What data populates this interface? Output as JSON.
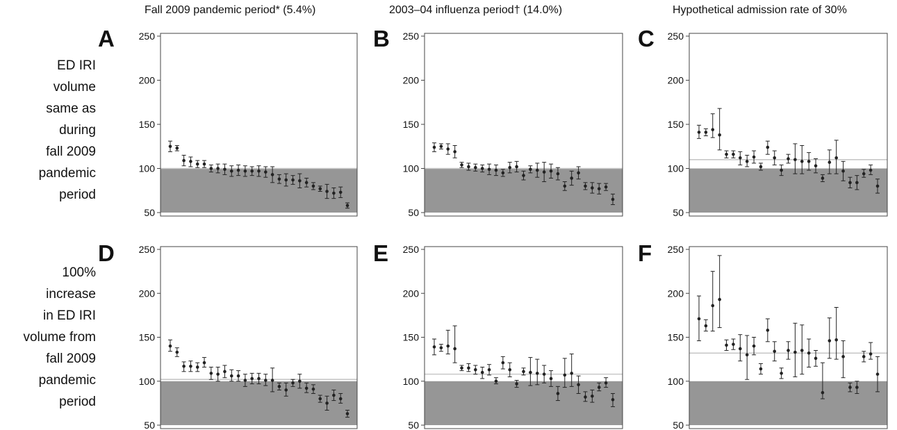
{
  "column_titles": [
    "Fall 2009 pandemic period* (5.4%)",
    "2003–04 influenza period† (14.0%)",
    "Hypothetical admission rate of 30%"
  ],
  "row_labels": [
    [
      "ED IRI",
      "volume",
      "same as",
      "during",
      "fall 2009",
      "pandemic",
      "period"
    ],
    [
      "100%",
      "increase",
      "in ED IRI",
      "volume from",
      "fall 2009",
      "pandemic",
      "period"
    ]
  ],
  "colors": {
    "shade": "#969696",
    "capacity_line": "#c8c8c8",
    "point": "#222222",
    "frame": "#444444"
  },
  "chart_data": [
    {
      "type": "scatter",
      "panel": "A",
      "ylim": [
        50,
        250
      ],
      "yticks": [
        50,
        100,
        150,
        200,
        250
      ],
      "shade_range": [
        50,
        100
      ],
      "line_value": 100,
      "x": [
        1,
        2,
        3,
        4,
        5,
        6,
        7,
        8,
        9,
        10,
        11,
        12,
        13,
        14,
        15,
        16,
        17,
        18,
        19,
        20,
        21,
        22,
        23,
        24,
        25,
        26,
        27
      ],
      "values": [
        125,
        123,
        109,
        108,
        105,
        105,
        100,
        100,
        99,
        97,
        98,
        97,
        97,
        97,
        96,
        93,
        88,
        87,
        87,
        86,
        84,
        80,
        77,
        74,
        72,
        73,
        58
      ],
      "lower": [
        119,
        120,
        103,
        102,
        101,
        101,
        96,
        95,
        93,
        91,
        92,
        91,
        92,
        91,
        90,
        84,
        83,
        80,
        82,
        78,
        79,
        76,
        74,
        66,
        66,
        67,
        55
      ],
      "upper": [
        131,
        126,
        115,
        113,
        109,
        109,
        104,
        105,
        105,
        103,
        104,
        103,
        102,
        103,
        102,
        102,
        93,
        94,
        92,
        94,
        89,
        84,
        80,
        82,
        78,
        79,
        61
      ]
    },
    {
      "type": "scatter",
      "panel": "B",
      "ylim": [
        50,
        250
      ],
      "yticks": [
        50,
        100,
        150,
        200,
        250
      ],
      "shade_range": [
        50,
        100
      ],
      "line_value": 100,
      "x": [
        1,
        2,
        3,
        4,
        5,
        6,
        7,
        8,
        9,
        10,
        11,
        12,
        13,
        14,
        15,
        16,
        17,
        18,
        19,
        20,
        21,
        22,
        23,
        24,
        25,
        26,
        27
      ],
      "values": [
        124,
        125,
        122,
        119,
        104,
        102,
        101,
        100,
        99,
        98,
        95,
        101,
        102,
        92,
        99,
        98,
        96,
        97,
        94,
        80,
        89,
        95,
        80,
        78,
        77,
        79,
        65
      ],
      "lower": [
        119,
        122,
        116,
        112,
        101,
        98,
        97,
        96,
        93,
        92,
        91,
        95,
        96,
        87,
        95,
        90,
        85,
        89,
        87,
        75,
        81,
        88,
        76,
        72,
        71,
        75,
        59
      ],
      "upper": [
        129,
        128,
        128,
        126,
        107,
        106,
        105,
        104,
        105,
        104,
        99,
        107,
        108,
        97,
        103,
        106,
        107,
        105,
        101,
        85,
        97,
        102,
        84,
        84,
        83,
        83,
        71
      ]
    },
    {
      "type": "scatter",
      "panel": "C",
      "ylim": [
        50,
        250
      ],
      "yticks": [
        50,
        100,
        150,
        200,
        250
      ],
      "shade_range": [
        50,
        100
      ],
      "line_value": 110,
      "x": [
        1,
        2,
        3,
        4,
        5,
        6,
        7,
        8,
        9,
        10,
        11,
        12,
        13,
        14,
        15,
        16,
        17,
        18,
        19,
        20,
        21,
        22,
        23,
        24,
        25,
        26,
        27
      ],
      "values": [
        141,
        141,
        144,
        138,
        116,
        116,
        112,
        108,
        113,
        102,
        124,
        112,
        98,
        111,
        110,
        108,
        108,
        103,
        89,
        107,
        112,
        97,
        84,
        84,
        94,
        98,
        80
      ],
      "lower": [
        134,
        137,
        135,
        121,
        112,
        112,
        104,
        102,
        106,
        98,
        116,
        104,
        92,
        106,
        94,
        94,
        98,
        95,
        85,
        94,
        94,
        86,
        78,
        76,
        90,
        93,
        72
      ],
      "upper": [
        149,
        145,
        162,
        168,
        120,
        120,
        119,
        115,
        120,
        106,
        131,
        120,
        104,
        116,
        128,
        126,
        118,
        111,
        93,
        121,
        132,
        108,
        90,
        92,
        99,
        104,
        88
      ]
    },
    {
      "type": "scatter",
      "panel": "D",
      "ylim": [
        50,
        250
      ],
      "yticks": [
        50,
        100,
        150,
        200,
        250
      ],
      "shade_range": [
        50,
        100
      ],
      "line_value": 102,
      "x": [
        1,
        2,
        3,
        4,
        5,
        6,
        7,
        8,
        9,
        10,
        11,
        12,
        13,
        14,
        15,
        16,
        17,
        18,
        19,
        20,
        21,
        22,
        23,
        24,
        25,
        26,
        27
      ],
      "values": [
        140,
        133,
        117,
        117,
        116,
        121,
        109,
        108,
        111,
        106,
        106,
        101,
        103,
        103,
        101,
        101,
        94,
        90,
        98,
        100,
        92,
        91,
        80,
        75,
        84,
        80,
        63
      ],
      "lower": [
        134,
        128,
        111,
        111,
        111,
        116,
        102,
        100,
        104,
        100,
        100,
        94,
        97,
        97,
        95,
        88,
        90,
        83,
        94,
        92,
        87,
        86,
        76,
        67,
        78,
        75,
        59
      ],
      "upper": [
        147,
        138,
        122,
        123,
        121,
        127,
        116,
        116,
        118,
        113,
        112,
        108,
        109,
        109,
        108,
        115,
        98,
        98,
        102,
        108,
        98,
        96,
        84,
        83,
        90,
        86,
        67
      ]
    },
    {
      "type": "scatter",
      "panel": "E",
      "ylim": [
        50,
        250
      ],
      "yticks": [
        50,
        100,
        150,
        200,
        250
      ],
      "shade_range": [
        50,
        100
      ],
      "line_value": 108,
      "x": [
        1,
        2,
        3,
        4,
        5,
        6,
        7,
        8,
        9,
        10,
        11,
        12,
        13,
        14,
        15,
        16,
        17,
        18,
        19,
        20,
        21,
        22,
        23,
        24,
        25,
        26,
        27
      ],
      "values": [
        139,
        138,
        140,
        137,
        115,
        115,
        113,
        110,
        113,
        100,
        121,
        113,
        97,
        111,
        110,
        109,
        108,
        103,
        86,
        107,
        109,
        96,
        82,
        83,
        93,
        98,
        79
      ],
      "lower": [
        130,
        134,
        131,
        121,
        112,
        111,
        108,
        103,
        107,
        97,
        114,
        105,
        93,
        107,
        95,
        96,
        98,
        94,
        78,
        93,
        94,
        86,
        77,
        76,
        89,
        93,
        71
      ],
      "upper": [
        148,
        142,
        158,
        163,
        118,
        120,
        118,
        116,
        119,
        104,
        128,
        121,
        101,
        115,
        127,
        125,
        118,
        112,
        94,
        126,
        131,
        106,
        88,
        90,
        98,
        104,
        86
      ]
    },
    {
      "type": "scatter",
      "panel": "F",
      "ylim": [
        50,
        250
      ],
      "yticks": [
        50,
        100,
        150,
        200,
        250
      ],
      "shade_range": [
        50,
        100
      ],
      "line_value": 132,
      "x": [
        1,
        2,
        3,
        4,
        5,
        6,
        7,
        8,
        9,
        10,
        11,
        12,
        13,
        14,
        15,
        16,
        17,
        18,
        19,
        20,
        21,
        22,
        23,
        24,
        25,
        26,
        27
      ],
      "values": [
        171,
        163,
        186,
        193,
        141,
        142,
        137,
        130,
        140,
        114,
        158,
        134,
        109,
        135,
        133,
        135,
        132,
        126,
        87,
        146,
        147,
        128,
        93,
        93,
        128,
        131,
        108
      ],
      "lower": [
        146,
        157,
        157,
        161,
        135,
        136,
        123,
        102,
        130,
        108,
        145,
        123,
        103,
        125,
        105,
        108,
        116,
        117,
        80,
        126,
        125,
        104,
        88,
        86,
        122,
        125,
        88
      ],
      "upper": [
        197,
        170,
        225,
        243,
        147,
        148,
        153,
        152,
        150,
        120,
        171,
        145,
        115,
        145,
        166,
        164,
        148,
        135,
        121,
        172,
        184,
        146,
        98,
        100,
        134,
        144,
        128
      ]
    }
  ]
}
